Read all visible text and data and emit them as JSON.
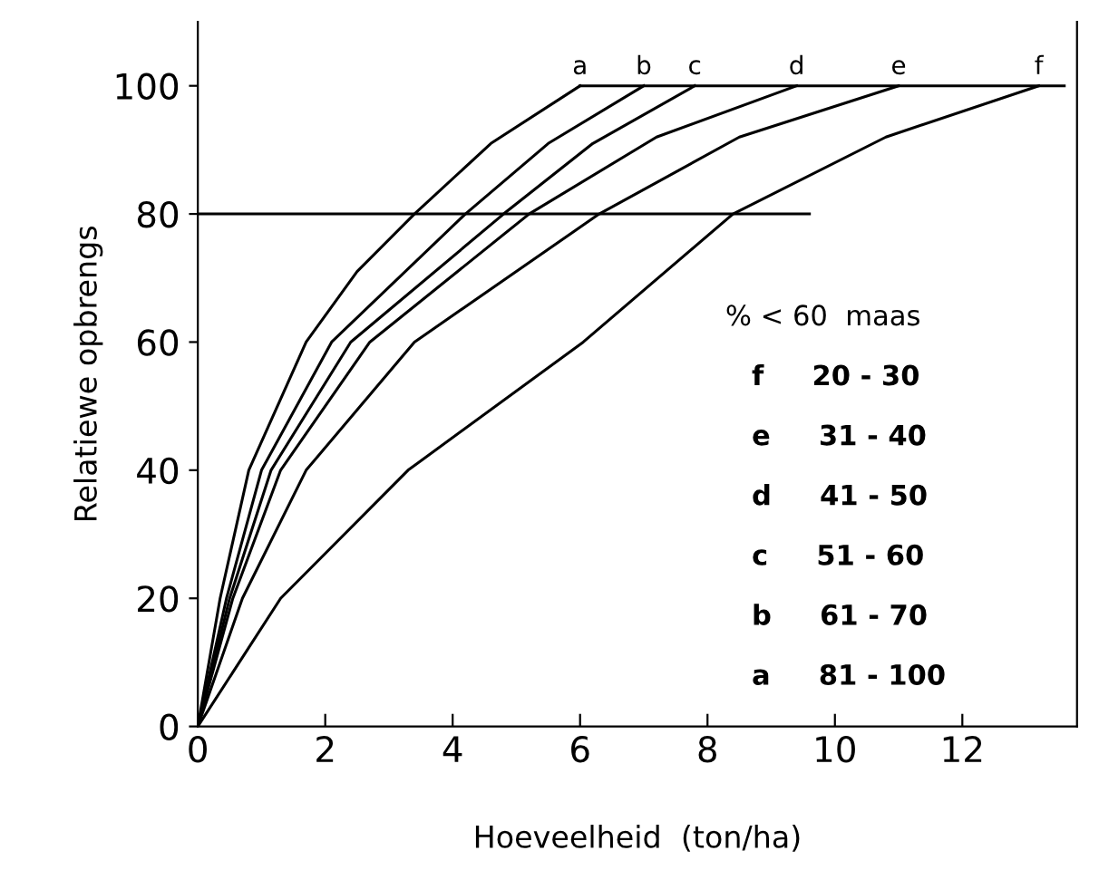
{
  "chart_data": {
    "type": "line",
    "xlabel": "Hoeveelheid  (ton/ha)",
    "ylabel": "Relatiewe opbrengs",
    "xlim": [
      0,
      13.8
    ],
    "ylim": [
      0,
      110
    ],
    "xticks": [
      0,
      2,
      4,
      6,
      8,
      10,
      12
    ],
    "yticks": [
      0,
      20,
      40,
      60,
      80,
      100
    ],
    "grid": false,
    "legend": false,
    "marker": "none",
    "line_style": "solid",
    "series": [
      {
        "name": "a",
        "color": "#000000",
        "x": [
          0,
          0.35,
          0.8,
          1.7,
          2.5,
          3.4,
          4.6,
          6.0
        ],
        "values": [
          0,
          20,
          40,
          60,
          71,
          80,
          91,
          100
        ]
      },
      {
        "name": "b",
        "color": "#000000",
        "x": [
          0,
          0.45,
          1.0,
          2.1,
          4.2,
          5.5,
          7.0
        ],
        "values": [
          0,
          20,
          40,
          60,
          80,
          91,
          100
        ]
      },
      {
        "name": "c",
        "color": "#000000",
        "x": [
          0,
          0.5,
          1.15,
          2.4,
          4.8,
          6.2,
          7.8
        ],
        "values": [
          0,
          20,
          40,
          60,
          80,
          91,
          100
        ]
      },
      {
        "name": "d",
        "color": "#000000",
        "x": [
          0,
          0.55,
          1.3,
          2.7,
          5.2,
          7.2,
          9.4
        ],
        "values": [
          0,
          20,
          40,
          60,
          80,
          92,
          100
        ]
      },
      {
        "name": "e",
        "color": "#000000",
        "x": [
          0,
          0.7,
          1.7,
          3.4,
          6.3,
          8.5,
          11.0
        ],
        "values": [
          0,
          20,
          40,
          60,
          80,
          92,
          100
        ]
      },
      {
        "name": "f",
        "color": "#000000",
        "x": [
          0,
          1.3,
          3.3,
          6.05,
          8.4,
          10.8,
          13.2
        ],
        "values": [
          0,
          20,
          40,
          60,
          80,
          92,
          100
        ]
      },
      {
        "color": "#000000",
        "x": [
          6.0,
          13.6
        ],
        "values": [
          100,
          100
        ]
      },
      {
        "color": "#000000",
        "x": [
          0,
          9.6
        ],
        "values": [
          80,
          80
        ]
      }
    ],
    "annotations": [
      "% < 60  maas",
      "f     20 - 30",
      "e     31 - 40",
      "d     41 - 50",
      "c     51 - 60",
      "b     61 - 70",
      "a     81 - 100"
    ]
  }
}
